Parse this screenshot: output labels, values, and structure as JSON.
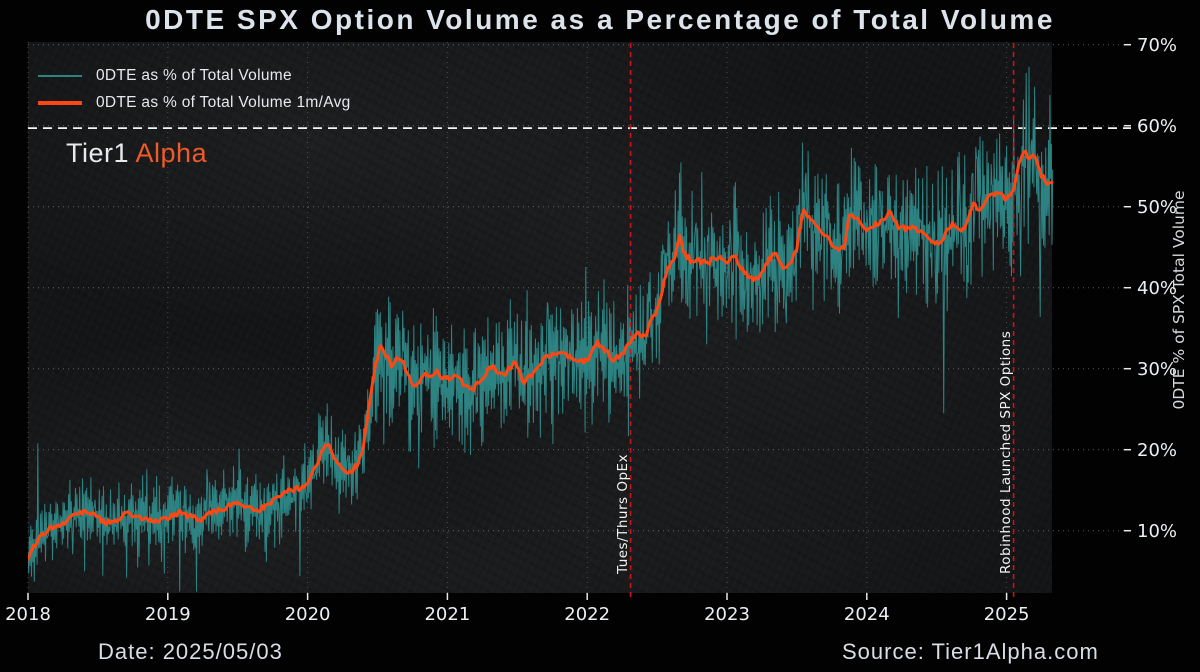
{
  "title": "0DTE SPX Option Volume as a Percentage of Total Volume",
  "watermark": {
    "part1": "Tier1",
    "part2": "Alpha",
    "accent_color": "#f05a28"
  },
  "legend": [
    {
      "label": "0DTE as % of Total Volume",
      "color": "#2d8282",
      "line_width": 2
    },
    {
      "label": "0DTE as % of Total Volume 1m/Avg",
      "color": "#ff4713",
      "line_width": 4
    }
  ],
  "footer": {
    "date_label": "Date: 2025/05/03",
    "source_label": "Source: Tier1Alpha.com"
  },
  "chart_data": {
    "type": "line",
    "title": "0DTE SPX Option Volume as a Percentage of Total Volume",
    "ylabel": "0DTE % of SPX Total Volume",
    "xlim": [
      2018.0,
      2025.88
    ],
    "ylim": [
      2.3,
      71.7
    ],
    "grid": true,
    "legend_position": "upper-left",
    "x_ticks": [
      2018,
      2019,
      2020,
      2021,
      2022,
      2023,
      2024,
      2025
    ],
    "y_ticks": [
      10,
      20,
      30,
      40,
      50,
      60,
      70
    ],
    "y_tick_suffix": "%",
    "reference_line": {
      "value": 59.7,
      "color": "#f5f5f5",
      "style": "dashed"
    },
    "event_lines": [
      {
        "x": 2022.31,
        "label": "Tues/Thurs OpEx",
        "color": "#d01018"
      },
      {
        "x": 2025.05,
        "label": "Robinhood Launched SPX Options",
        "color": "#d01018"
      }
    ],
    "series": [
      {
        "name": "0DTE as % of Total Volume",
        "color": "#2d8282",
        "style": "daily_noisy",
        "derivation": "monthly_avg_plus_noise",
        "x_start": 2018.0,
        "x_end": 2025.33,
        "noise": {
          "seed": 1337,
          "per_year": 200,
          "base_amp": 2.0,
          "amp_scale": 0.13,
          "spike_prob": 0.05,
          "spike_amp": 6,
          "cap": 11.5
        },
        "extremes": [
          {
            "x": 2018.07,
            "value": 20.8
          },
          {
            "x": 2024.55,
            "value": 24.5
          },
          {
            "x": 2025.1,
            "value": 41.4
          },
          {
            "x": 2025.2,
            "value": 64.8
          },
          {
            "x": 2025.24,
            "value": 36.4
          },
          {
            "x": 2025.31,
            "value": 63.8
          }
        ]
      },
      {
        "name": "0DTE as % of Total Volume 1m/Avg",
        "color": "#ff4713",
        "style": "smooth",
        "points": [
          [
            2018.0,
            6.8
          ],
          [
            2018.05,
            8.3
          ],
          [
            2018.1,
            9.5
          ],
          [
            2018.17,
            10.4
          ],
          [
            2018.25,
            11.0
          ],
          [
            2018.33,
            11.9
          ],
          [
            2018.4,
            12.4
          ],
          [
            2018.48,
            11.9
          ],
          [
            2018.55,
            11.0
          ],
          [
            2018.63,
            11.3
          ],
          [
            2018.7,
            12.1
          ],
          [
            2018.78,
            11.8
          ],
          [
            2018.85,
            11.4
          ],
          [
            2018.92,
            11.1
          ],
          [
            2019.0,
            11.5
          ],
          [
            2019.08,
            12.2
          ],
          [
            2019.15,
            11.9
          ],
          [
            2019.23,
            11.4
          ],
          [
            2019.3,
            12.0
          ],
          [
            2019.4,
            12.7
          ],
          [
            2019.5,
            13.4
          ],
          [
            2019.58,
            12.9
          ],
          [
            2019.65,
            12.6
          ],
          [
            2019.75,
            13.6
          ],
          [
            2019.83,
            14.7
          ],
          [
            2019.92,
            15.1
          ],
          [
            2020.0,
            15.9
          ],
          [
            2020.06,
            18.0
          ],
          [
            2020.1,
            19.8
          ],
          [
            2020.14,
            20.7
          ],
          [
            2020.2,
            18.6
          ],
          [
            2020.26,
            17.4
          ],
          [
            2020.31,
            17.3
          ],
          [
            2020.36,
            18.3
          ],
          [
            2020.4,
            20.5
          ],
          [
            2020.44,
            25.5
          ],
          [
            2020.48,
            30.1
          ],
          [
            2020.52,
            32.7
          ],
          [
            2020.56,
            31.8
          ],
          [
            2020.6,
            30.3
          ],
          [
            2020.64,
            31.3
          ],
          [
            2020.68,
            30.9
          ],
          [
            2020.72,
            29.1
          ],
          [
            2020.76,
            27.7
          ],
          [
            2020.8,
            28.4
          ],
          [
            2020.84,
            29.8
          ],
          [
            2020.88,
            28.7
          ],
          [
            2020.92,
            29.6
          ],
          [
            2020.96,
            29.1
          ],
          [
            2021.0,
            28.8
          ],
          [
            2021.07,
            29.2
          ],
          [
            2021.12,
            27.8
          ],
          [
            2021.18,
            27.4
          ],
          [
            2021.25,
            28.9
          ],
          [
            2021.32,
            30.4
          ],
          [
            2021.4,
            29.0
          ],
          [
            2021.48,
            30.8
          ],
          [
            2021.55,
            28.3
          ],
          [
            2021.62,
            29.6
          ],
          [
            2021.7,
            31.3
          ],
          [
            2021.78,
            32.1
          ],
          [
            2021.85,
            31.7
          ],
          [
            2021.93,
            30.8
          ],
          [
            2022.0,
            31.1
          ],
          [
            2022.07,
            33.2
          ],
          [
            2022.13,
            32.3
          ],
          [
            2022.19,
            31.0
          ],
          [
            2022.25,
            31.8
          ],
          [
            2022.31,
            33.6
          ],
          [
            2022.36,
            34.2
          ],
          [
            2022.42,
            34.0
          ],
          [
            2022.46,
            36.3
          ],
          [
            2022.5,
            37.2
          ],
          [
            2022.54,
            40.0
          ],
          [
            2022.58,
            42.5
          ],
          [
            2022.62,
            43.3
          ],
          [
            2022.66,
            46.4
          ],
          [
            2022.7,
            44.0
          ],
          [
            2022.74,
            43.4
          ],
          [
            2022.8,
            43.3
          ],
          [
            2022.86,
            43.1
          ],
          [
            2022.92,
            43.7
          ],
          [
            2023.0,
            43.3
          ],
          [
            2023.06,
            43.7
          ],
          [
            2023.12,
            42.0
          ],
          [
            2023.17,
            41.2
          ],
          [
            2023.22,
            41.0
          ],
          [
            2023.28,
            42.8
          ],
          [
            2023.34,
            44.5
          ],
          [
            2023.4,
            42.6
          ],
          [
            2023.45,
            43.0
          ],
          [
            2023.5,
            45.0
          ],
          [
            2023.54,
            49.4
          ],
          [
            2023.58,
            49.0
          ],
          [
            2023.63,
            47.6
          ],
          [
            2023.68,
            47.1
          ],
          [
            2023.73,
            45.8
          ],
          [
            2023.77,
            44.9
          ],
          [
            2023.8,
            44.4
          ],
          [
            2023.84,
            45.1
          ],
          [
            2023.88,
            49.4
          ],
          [
            2023.93,
            48.6
          ],
          [
            2024.0,
            47.3
          ],
          [
            2024.06,
            47.8
          ],
          [
            2024.12,
            48.2
          ],
          [
            2024.17,
            49.3
          ],
          [
            2024.22,
            47.6
          ],
          [
            2024.28,
            47.2
          ],
          [
            2024.34,
            47.4
          ],
          [
            2024.4,
            46.8
          ],
          [
            2024.46,
            45.9
          ],
          [
            2024.52,
            45.3
          ],
          [
            2024.58,
            47.2
          ],
          [
            2024.63,
            48.0
          ],
          [
            2024.68,
            46.8
          ],
          [
            2024.73,
            48.6
          ],
          [
            2024.76,
            50.4
          ],
          [
            2024.8,
            49.7
          ],
          [
            2024.85,
            50.5
          ],
          [
            2024.9,
            51.7
          ],
          [
            2024.95,
            51.4
          ],
          [
            2025.0,
            51.1
          ],
          [
            2025.04,
            51.6
          ],
          [
            2025.08,
            54.6
          ],
          [
            2025.12,
            57.2
          ],
          [
            2025.16,
            55.8
          ],
          [
            2025.2,
            56.2
          ],
          [
            2025.24,
            54.2
          ],
          [
            2025.28,
            53.0
          ],
          [
            2025.33,
            52.8
          ]
        ]
      }
    ]
  }
}
